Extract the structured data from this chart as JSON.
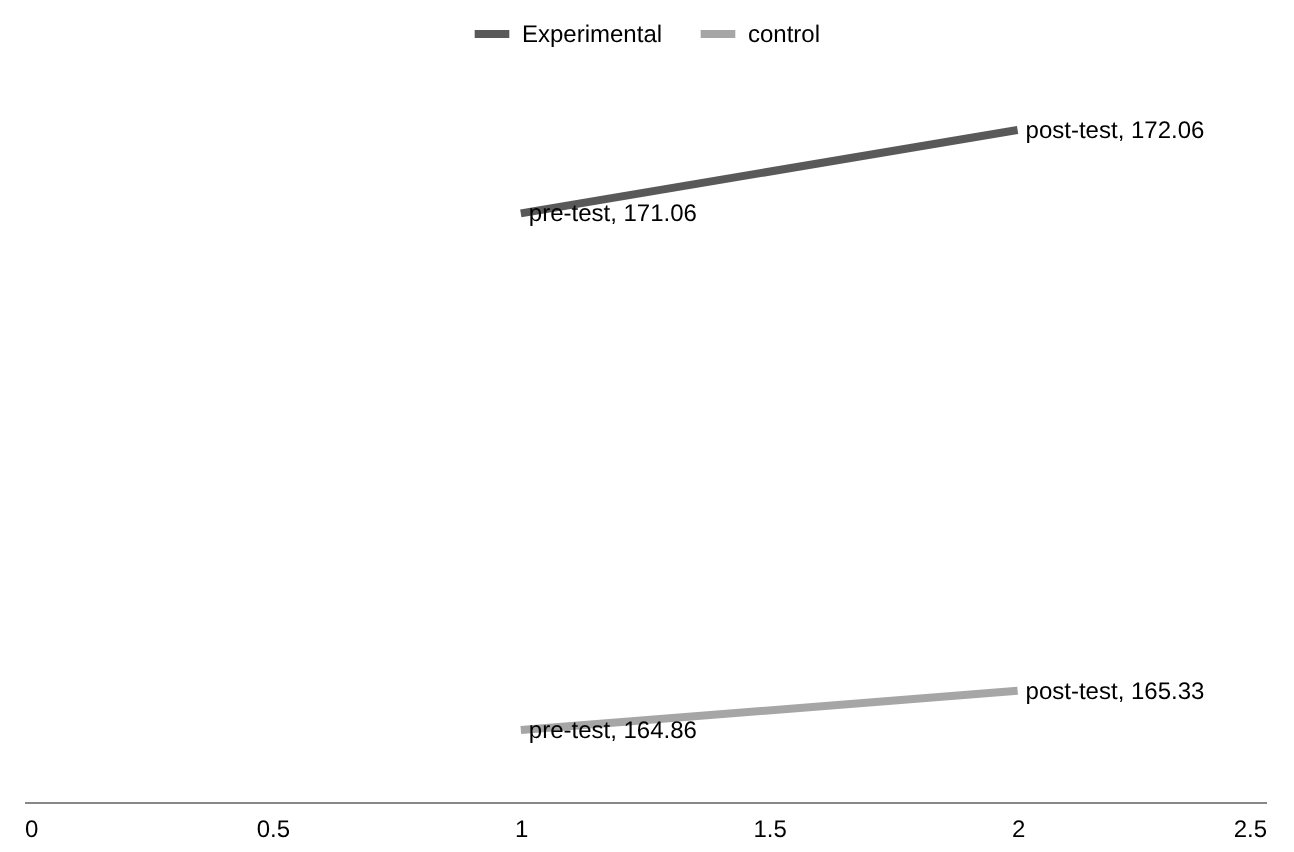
{
  "chart_data": {
    "type": "line",
    "x": [
      1,
      2
    ],
    "xlim": [
      0,
      2.5
    ],
    "xticks": [
      0,
      0.5,
      1,
      1.5,
      2,
      2.5
    ],
    "tick_labels": "x",
    "grid": false,
    "legend": "top",
    "marker": "none",
    "line_style": "solid",
    "series": [
      {
        "name": "Experimental",
        "color": "#595959",
        "values": [
          171.06,
          172.06
        ],
        "value_labels": [
          "pre-test, 171.06",
          "post-test, 172.06"
        ]
      },
      {
        "name": "control",
        "color": "#a6a6a6",
        "values": [
          164.86,
          165.33
        ],
        "value_labels": [
          "pre-test, 164.86",
          "post-test, 165.33"
        ]
      }
    ]
  }
}
